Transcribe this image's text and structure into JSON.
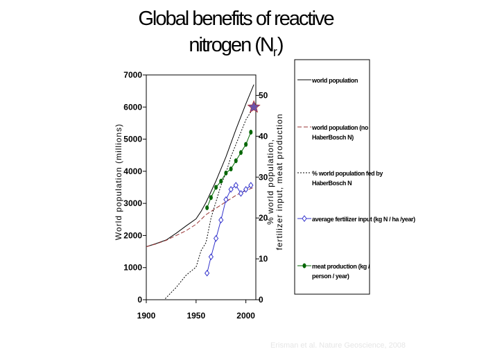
{
  "title_line1": "Global benefits of reactive",
  "title_line2_main": "nitrogen (N",
  "title_line2_sub": "r",
  "title_line2_end": ")",
  "credit": "Erisman et al.  Nature Geoscience, 2008",
  "chart_data": {
    "type": "line",
    "xlim": [
      1900,
      2010
    ],
    "x_ticks": [
      1900,
      1950,
      2000
    ],
    "left_axis": {
      "label": "World population  (millions)",
      "ylim": [
        0,
        7000
      ],
      "ticks": [
        0,
        1000,
        2000,
        3000,
        4000,
        5000,
        6000,
        7000
      ]
    },
    "right_axis": {
      "label_line1": "% world population,",
      "label_line2": "fertilizer input, meat production",
      "ylim": [
        0,
        55
      ],
      "ticks": [
        0,
        10,
        20,
        30,
        40,
        50
      ]
    },
    "grid": false,
    "legend_position": "right",
    "series": [
      {
        "name": "world population",
        "axis": "left",
        "color": "#000000",
        "style": "solid",
        "x": [
          1900,
          1910,
          1920,
          1930,
          1940,
          1950,
          1955,
          1960,
          1970,
          1980,
          1990,
          2000,
          2008
        ],
        "y": [
          1650,
          1750,
          1860,
          2070,
          2300,
          2520,
          2750,
          3030,
          3700,
          4450,
          5300,
          6100,
          6700
        ]
      },
      {
        "name": "world population (no HaberBosch N)",
        "axis": "left",
        "color": "#993333",
        "style": "dashed",
        "x": [
          1900,
          1910,
          1920,
          1930,
          1940,
          1950,
          1960,
          1970,
          1980,
          1990,
          2000,
          2008
        ],
        "y": [
          1650,
          1740,
          1850,
          2000,
          2150,
          2350,
          2650,
          2850,
          3050,
          3250,
          3400,
          3500
        ]
      },
      {
        "name": "% world population fed by HaberBosch N",
        "axis": "right",
        "color": "#000000",
        "style": "dotted",
        "x": [
          1900,
          1918,
          1920,
          1930,
          1940,
          1950,
          1955,
          1960,
          1965,
          1970,
          1975,
          1980,
          1985,
          1990,
          1995,
          2000,
          2005,
          2008
        ],
        "y": [
          0,
          0,
          0.5,
          3,
          6,
          8,
          12,
          14,
          20,
          24,
          28,
          31,
          35,
          38,
          41,
          44,
          46,
          47
        ]
      },
      {
        "name": "average fertilizer input (kg N / ha /year)",
        "axis": "right",
        "color": "#3333cc",
        "style": "solid",
        "marker": "diamond",
        "x": [
          1961,
          1965,
          1970,
          1975,
          1980,
          1985,
          1990,
          1995,
          2000,
          2005
        ],
        "y": [
          6.5,
          10.5,
          15,
          19.5,
          24.5,
          27,
          28,
          26,
          27,
          28
        ]
      },
      {
        "name": "meat production (kg / person / year)",
        "axis": "right",
        "color": "#006600",
        "style": "solid",
        "marker": "circle",
        "x": [
          1961,
          1965,
          1970,
          1975,
          1980,
          1985,
          1990,
          1995,
          2000,
          2005
        ],
        "y": [
          22.5,
          25,
          27.5,
          29,
          31,
          32,
          34,
          36,
          38,
          41
        ]
      }
    ],
    "annotations": [
      {
        "type": "star",
        "x": 2008,
        "axis": "left",
        "y": 6000,
        "color": "#6a52a8"
      }
    ]
  }
}
